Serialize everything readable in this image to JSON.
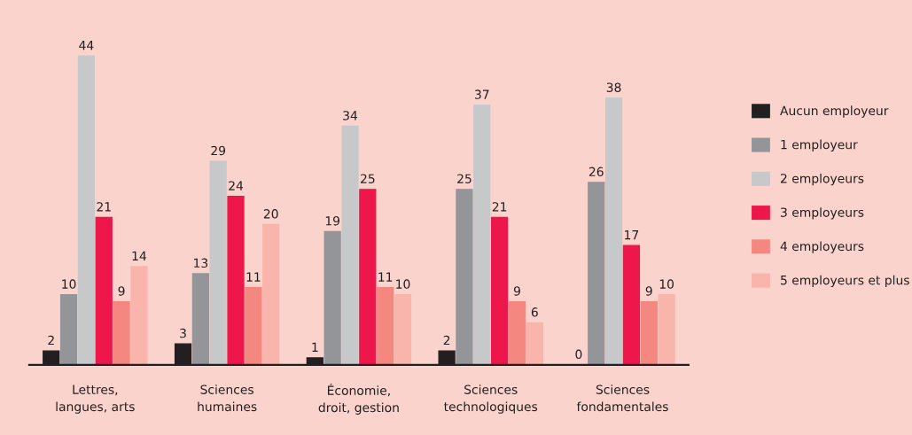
{
  "chart_data": {
    "type": "bar",
    "categories": [
      "Lettres,\nlangues, arts",
      "Sciences\nhumaines",
      "Économie,\ndroit, gestion",
      "Sciences\ntechnologiques",
      "Sciences\nfondamentales"
    ],
    "series": [
      {
        "name": "Aucun employeur",
        "color": "#231f20",
        "values": [
          2,
          3,
          1,
          2,
          0
        ]
      },
      {
        "name": "1 employeur",
        "color": "#939598",
        "values": [
          10,
          13,
          19,
          25,
          26
        ]
      },
      {
        "name": "2 employeurs",
        "color": "#c7c8ca",
        "values": [
          44,
          29,
          34,
          37,
          38
        ]
      },
      {
        "name": "3 employeurs",
        "color": "#ed174b",
        "values": [
          21,
          24,
          25,
          21,
          17
        ]
      },
      {
        "name": "4 employeurs",
        "color": "#f4877f",
        "values": [
          9,
          11,
          11,
          9,
          9
        ]
      },
      {
        "name": "5 employeurs et plus",
        "color": "#f9b5ab",
        "values": [
          14,
          20,
          10,
          6,
          10
        ]
      }
    ],
    "data_labels": true,
    "legend": "right",
    "tick_labels": "x"
  }
}
